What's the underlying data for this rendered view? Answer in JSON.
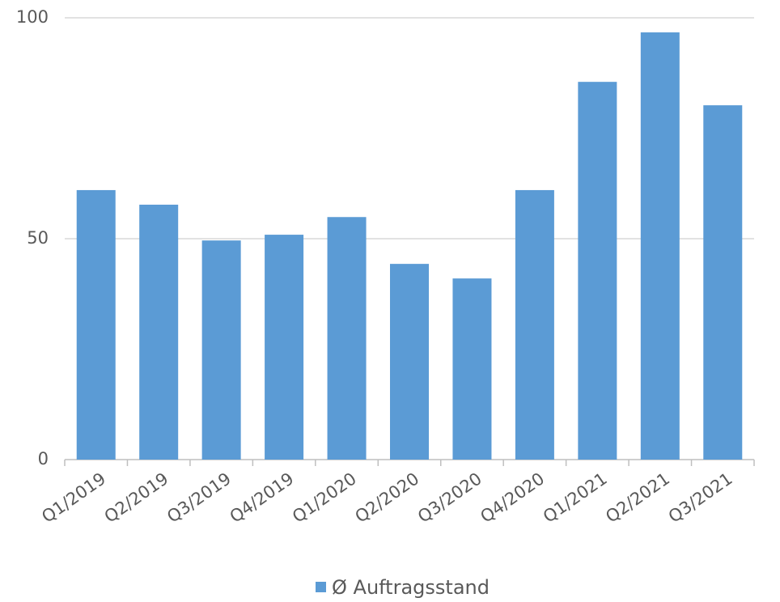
{
  "chart_data": {
    "type": "bar",
    "categories": [
      "Q1/2019",
      "Q2/2019",
      "Q3/2019",
      "Q4/2019",
      "Q1/2020",
      "Q2/2020",
      "Q3/2020",
      "Q4/2020",
      "Q1/2021",
      "Q2/2021",
      "Q3/2021"
    ],
    "series": [
      {
        "name": "Ø Auftragsstand",
        "color": "#5b9bd5",
        "values": [
          61.0,
          57.7,
          49.6,
          50.9,
          54.9,
          44.3,
          41.0,
          61.0,
          85.5,
          96.7,
          80.2
        ]
      }
    ],
    "ylim": [
      0,
      100
    ],
    "yticks": [
      0,
      50,
      100
    ],
    "grid": true,
    "legend": "bottom"
  }
}
